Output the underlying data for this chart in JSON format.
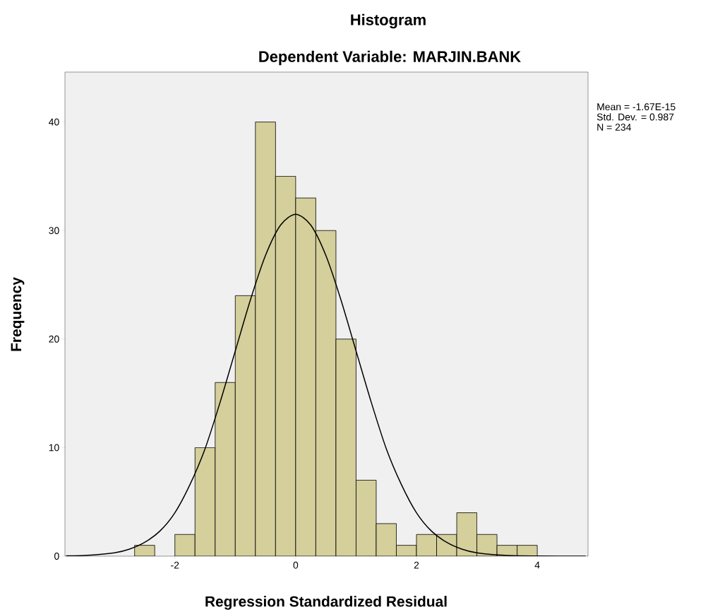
{
  "chart_data": {
    "type": "histogram",
    "title": "Histogram",
    "subtitle": "Dependent Variable: MARJIN.BANK",
    "xlabel": "Regression Standardized Residual",
    "ylabel": "Frequency",
    "bins": [
      -2.6667,
      -2.3333,
      -2,
      -1.6667,
      -1.3333,
      -1,
      -0.6667,
      -0.3333,
      0,
      0.3333,
      0.6667,
      1,
      1.3333,
      1.6667,
      2,
      2.3333,
      2.6667,
      3,
      3.3333,
      3.6667,
      4
    ],
    "values": [
      1,
      0,
      2,
      10,
      16,
      24,
      40,
      35,
      33,
      30,
      20,
      7,
      3,
      1,
      2,
      2,
      4,
      2,
      1,
      1
    ],
    "color": "#d4cf9b",
    "series": [
      {
        "type": "line",
        "color": "#000000",
        "x": [
          -3.8,
          -3.5,
          -3,
          -2.75,
          -2.5,
          -2.25,
          -2,
          -1.75,
          -1.5,
          -1.25,
          -1,
          -0.75,
          -0.5,
          -0.25,
          0,
          0.25,
          0.5,
          0.75,
          1,
          1.25,
          1.5,
          1.75,
          2,
          2.25,
          2.5,
          2.75,
          3,
          3.5,
          4,
          4.8
        ],
        "values": [
          0.03,
          0.06,
          0.31,
          0.65,
          1.27,
          2.3,
          4.0,
          6.6,
          9.9,
          14.2,
          18.9,
          23.6,
          27.7,
          30.5,
          31.5,
          30.5,
          27.7,
          23.6,
          18.9,
          14.2,
          9.9,
          6.6,
          4.0,
          2.3,
          1.27,
          0.65,
          0.31,
          0.06,
          0.01,
          0
        ]
      }
    ],
    "xlim": [
      -3.82,
      4.84
    ],
    "ylim": [
      0,
      44.6
    ],
    "xticks": [
      -2,
      0,
      2,
      4
    ],
    "yticks": [
      0,
      10,
      20,
      30,
      40
    ],
    "annotations": [
      "Mean = -1.67E-15",
      "Std. Dev. = 0.987",
      "N = 234"
    ]
  }
}
